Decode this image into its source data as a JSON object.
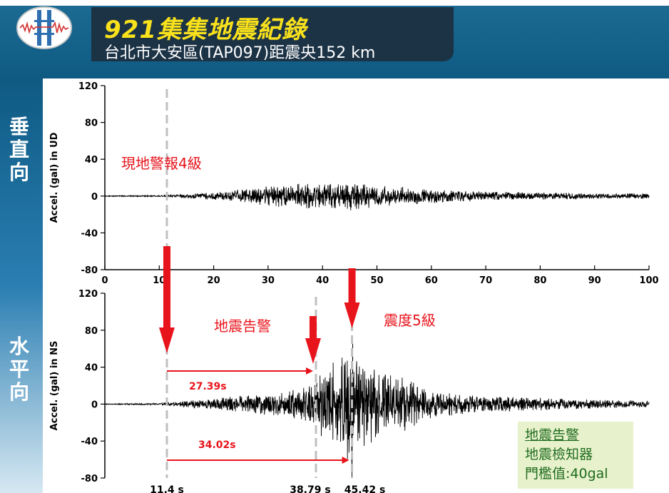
{
  "header": {
    "title": "921集集地震紀錄",
    "subtitle": "台北市大安區(TAP097)距震央152 km"
  },
  "side_labels": {
    "top": [
      "垂",
      "直",
      "向"
    ],
    "bottom": [
      "水",
      "平",
      "向"
    ]
  },
  "legend": {
    "lines": [
      "地震告警",
      "地震檢知器",
      "門檻值:40gal"
    ]
  },
  "colors": {
    "accent": "#e8141c",
    "header_title": "#f9e21c",
    "header_bg": "#0e5a83",
    "legend_bg": "#e7f1cb"
  },
  "chart_data": [
    {
      "type": "line",
      "name": "UD",
      "ylabel": "Accel. (gal) in UD",
      "xlim": [
        0,
        100
      ],
      "ylim": [
        -80,
        120
      ],
      "yticks": [
        120,
        80,
        40,
        0,
        -40,
        -80
      ],
      "xticks": [
        0,
        10,
        20,
        30,
        40,
        50,
        60,
        70,
        80,
        90,
        100
      ],
      "annotation": "現地警報4級",
      "envelope": [
        [
          0,
          0.5
        ],
        [
          10,
          0.8
        ],
        [
          14,
          2
        ],
        [
          22,
          5
        ],
        [
          28,
          10
        ],
        [
          35,
          15
        ],
        [
          40,
          13
        ],
        [
          45,
          16
        ],
        [
          50,
          13
        ],
        [
          55,
          10
        ],
        [
          62,
          7
        ],
        [
          70,
          5
        ],
        [
          80,
          4
        ],
        [
          90,
          3
        ],
        [
          100,
          3
        ]
      ]
    },
    {
      "type": "line",
      "name": "NS",
      "ylabel": "Accel. (gal) in NS",
      "xlim": [
        0,
        100
      ],
      "ylim": [
        -80,
        120
      ],
      "yticks": [
        120,
        80,
        40,
        0,
        -40,
        -80
      ],
      "envelope": [
        [
          0,
          0.5
        ],
        [
          10,
          1
        ],
        [
          14,
          3
        ],
        [
          22,
          8
        ],
        [
          30,
          12
        ],
        [
          36,
          17
        ],
        [
          38.8,
          25
        ],
        [
          40,
          38
        ],
        [
          42,
          48
        ],
        [
          44,
          55
        ],
        [
          45.42,
          80
        ],
        [
          46,
          60
        ],
        [
          48,
          45
        ],
        [
          50,
          38
        ],
        [
          55,
          30
        ],
        [
          60,
          16
        ],
        [
          65,
          12
        ],
        [
          70,
          9
        ],
        [
          80,
          7
        ],
        [
          90,
          5
        ],
        [
          100,
          4
        ]
      ],
      "markers": [
        {
          "t": 11.4,
          "label": "11.4 s"
        },
        {
          "t": 38.79,
          "label": "38.79 s"
        },
        {
          "t": 45.42,
          "label": "45.42 s"
        }
      ],
      "spans": [
        {
          "from": 11.4,
          "to": 38.79,
          "label": "27.39s"
        },
        {
          "from": 11.4,
          "to": 45.42,
          "label": "34.02s"
        }
      ],
      "annotations": [
        {
          "text": "地震告警"
        },
        {
          "text": "震度5級"
        }
      ]
    }
  ]
}
